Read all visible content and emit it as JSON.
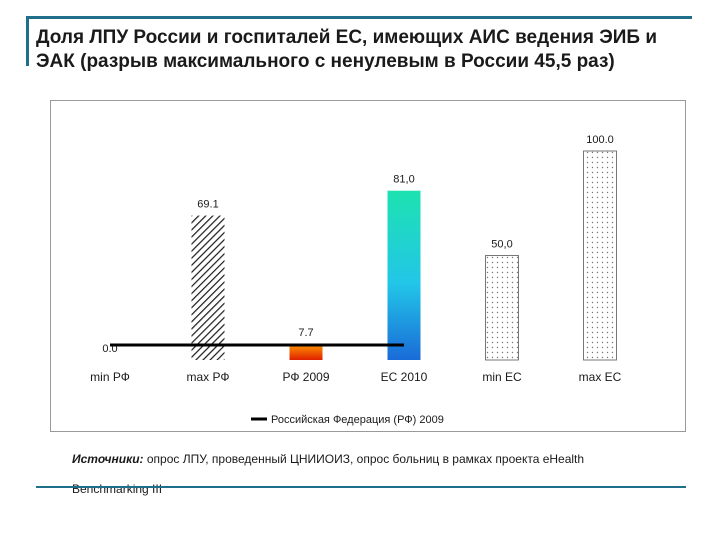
{
  "slide": {
    "title": "Доля ЛПУ России и госпиталей ЕС, имеющих АИС ведения ЭИБ и ЭАК (разрыв максимального с ненулевым в России 45,5 раз)",
    "sources_lead": "Источники:",
    "sources_text": " опрос ЛПУ, проведенный ЦНИИОИЗ, опрос больниц в рамках проекта  eHealth Benchmarking III"
  },
  "chart_data": {
    "type": "bar",
    "categories": [
      "min РФ",
      "max РФ",
      "РФ 2009",
      "ЕС 2010",
      "min ЕС",
      "max ЕС"
    ],
    "values": [
      0.0,
      69.1,
      7.7,
      81.0,
      50.0,
      100.0
    ],
    "value_labels": [
      "0.0",
      "69.1",
      "7.7",
      "81,0",
      "50,0",
      "100.0"
    ],
    "bar_styles": [
      "none",
      "hatch",
      "orange-gradient",
      "teal-blue-gradient",
      "dots",
      "dots"
    ],
    "ylim": [
      0,
      100
    ],
    "reference_line": {
      "name": "Российская Федерация (РФ) 2009",
      "value": 0.0
    },
    "legend_position": "bottom",
    "grid": false,
    "colors": {
      "hatch": "#1a1a1a",
      "orange_top": "#ff9a00",
      "orange_bottom": "#e02000",
      "teal_top": "#1de2b0",
      "blue_bottom": "#1a6bd8",
      "dots": "#777777",
      "reference_line": "#000000"
    }
  }
}
